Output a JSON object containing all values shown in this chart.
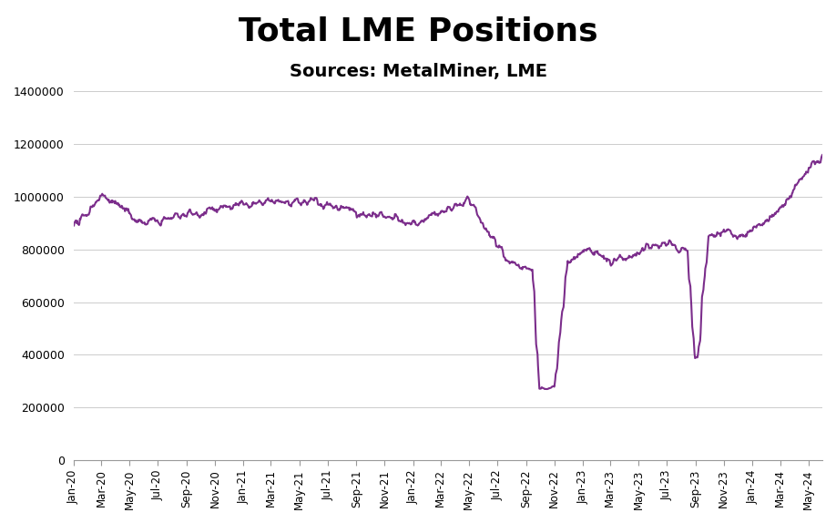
{
  "title": "Total LME Positions",
  "subtitle": "Sources: MetalMiner, LME",
  "title_fontsize": 26,
  "subtitle_fontsize": 14,
  "line_color": "#7B2D8B",
  "line_width": 1.5,
  "background_color": "#ffffff",
  "ylim": [
    0,
    1400000
  ],
  "yticks": [
    0,
    200000,
    400000,
    600000,
    800000,
    1000000,
    1200000,
    1400000
  ],
  "xlabel": "",
  "ylabel": ""
}
